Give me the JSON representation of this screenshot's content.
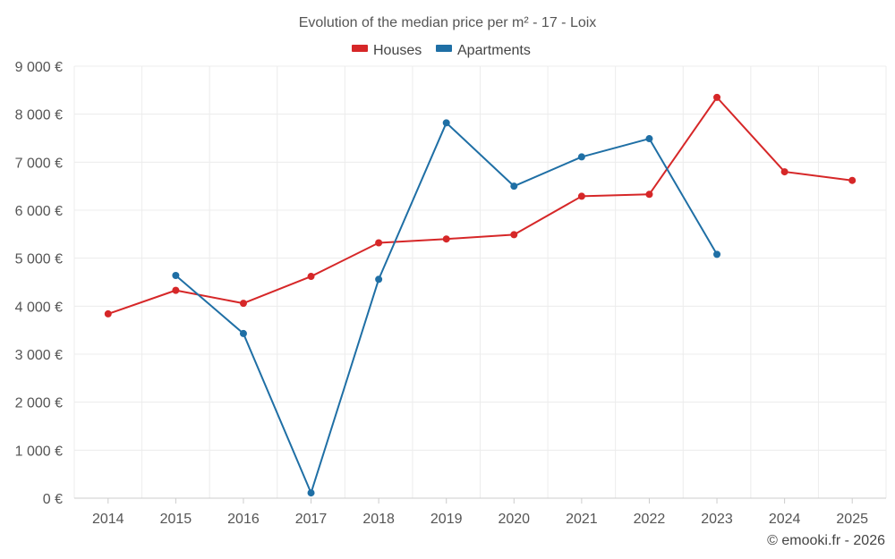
{
  "chart_data": {
    "type": "line",
    "title": "Evolution of the median price per m² - 17 - Loix",
    "categories": [
      "2014",
      "2015",
      "2016",
      "2017",
      "2018",
      "2019",
      "2020",
      "2021",
      "2022",
      "2023",
      "2024",
      "2025"
    ],
    "ylim": [
      0,
      9000
    ],
    "yticks": [
      0,
      1000,
      2000,
      3000,
      4000,
      5000,
      6000,
      7000,
      8000,
      9000
    ],
    "ytick_labels": [
      "0 €",
      "1 000 €",
      "2 000 €",
      "3 000 €",
      "4 000 €",
      "5 000 €",
      "6 000 €",
      "7 000 €",
      "8 000 €",
      "9 000 €"
    ],
    "xlabel": "",
    "ylabel": "",
    "grid": true,
    "legend_position": "top-center",
    "series": [
      {
        "name": "Houses",
        "color": "#d62728",
        "values": [
          3840,
          4330,
          4060,
          4620,
          5320,
          5400,
          5490,
          6290,
          6330,
          8350,
          6800,
          6620
        ]
      },
      {
        "name": "Apartments",
        "color": "#1f6fa5",
        "values": [
          null,
          4640,
          3430,
          110,
          4560,
          7820,
          6500,
          7110,
          7490,
          5080,
          null,
          null
        ]
      }
    ]
  },
  "footer": {
    "credit": "© emooki.fr - 2026"
  }
}
